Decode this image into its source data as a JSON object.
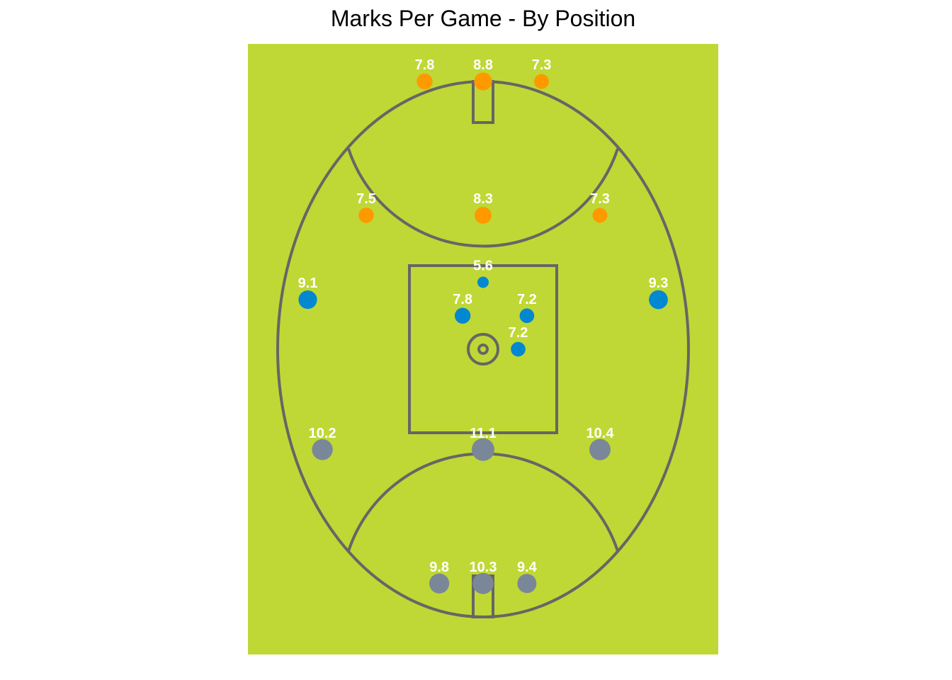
{
  "chart_data": {
    "type": "scatter",
    "title": "Marks Per Game - By Position",
    "xlabel": "",
    "ylabel": "",
    "grid": false,
    "legend": "none",
    "colors": {
      "field": "#BFD835",
      "lines": "#666666",
      "forward": "#FF9900",
      "midfield": "#0288D1",
      "back": "#7A8798",
      "label": "#FFFFFF"
    },
    "points": [
      {
        "x": -1,
        "y": 2,
        "value": 7.8,
        "group": "forward"
      },
      {
        "x": 0,
        "y": 2,
        "value": 8.8,
        "group": "forward"
      },
      {
        "x": 1,
        "y": 2,
        "value": 7.3,
        "group": "forward"
      },
      {
        "x": -2,
        "y": 1,
        "value": 7.5,
        "group": "forward"
      },
      {
        "x": 0,
        "y": 1,
        "value": 8.3,
        "group": "forward"
      },
      {
        "x": 2,
        "y": 1,
        "value": 7.3,
        "group": "forward"
      },
      {
        "x": 0,
        "y": 0.5,
        "value": 5.6,
        "group": "midfield"
      },
      {
        "x": -3,
        "y": 0.37,
        "value": 9.1,
        "group": "midfield"
      },
      {
        "x": 3,
        "y": 0.37,
        "value": 9.3,
        "group": "midfield"
      },
      {
        "x": -0.35,
        "y": 0.25,
        "value": 7.8,
        "group": "midfield"
      },
      {
        "x": 0.75,
        "y": 0.25,
        "value": 7.2,
        "group": "midfield"
      },
      {
        "x": 0.6,
        "y": 0,
        "value": 7.2,
        "group": "midfield"
      },
      {
        "x": -2.75,
        "y": -0.75,
        "value": 10.2,
        "group": "back"
      },
      {
        "x": 0,
        "y": -0.75,
        "value": 11.1,
        "group": "back"
      },
      {
        "x": 2,
        "y": -0.75,
        "value": 10.4,
        "group": "back"
      },
      {
        "x": -0.75,
        "y": -1.75,
        "value": 9.8,
        "group": "back"
      },
      {
        "x": 0,
        "y": -1.75,
        "value": 10.3,
        "group": "back"
      },
      {
        "x": 0.75,
        "y": -1.75,
        "value": 9.4,
        "group": "back"
      }
    ]
  }
}
